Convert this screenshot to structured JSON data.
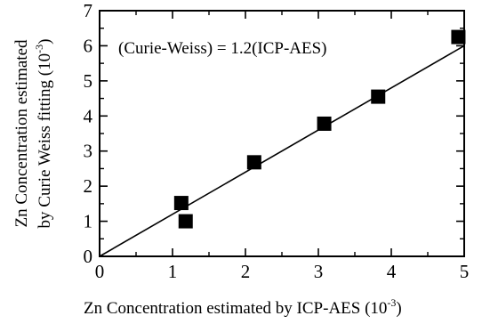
{
  "chart_data": {
    "type": "scatter",
    "title": "",
    "xlabel": {
      "text": "Zn Concentration estimated by ICP-AES (10",
      "exponent": "-3",
      "close": ")"
    },
    "ylabel": {
      "line1": "Zn Concentration estimated",
      "line2_text": "by Curie Weiss fitting (10",
      "line2_exponent": "-3",
      "line2_close": ")"
    },
    "xlim": [
      0,
      5
    ],
    "ylim": [
      0,
      7
    ],
    "xticks": [
      "0",
      "1",
      "2",
      "3",
      "4",
      "5"
    ],
    "yticks": [
      "0",
      "1",
      "2",
      "3",
      "4",
      "5",
      "6",
      "7"
    ],
    "grid": false,
    "legend": "none",
    "marker": "filled-square",
    "series": [
      {
        "x": [
          1.12,
          1.18,
          2.12,
          3.08,
          3.82,
          4.92
        ],
        "y": [
          1.52,
          1.0,
          2.68,
          3.78,
          4.55,
          6.25
        ]
      }
    ],
    "fit_line": {
      "slope": 1.2,
      "intercept": 0,
      "x_range": [
        0,
        5
      ]
    },
    "annotation": "(Curie-Weiss) = 1.2(ICP-AES)",
    "colors": {
      "marker": "#000000",
      "line": "#000000",
      "axes": "#000000"
    }
  }
}
